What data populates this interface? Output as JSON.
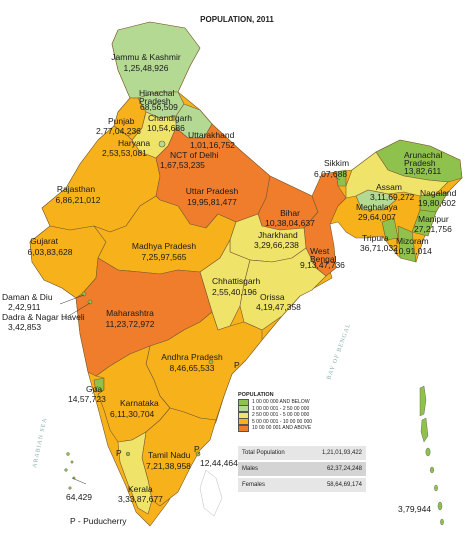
{
  "map": {
    "title": "POPULATION, 2011",
    "footnote": "P - Puducherry",
    "sea_labels": {
      "arabian": "ARABIAN SEA",
      "bay": "BAY OF BENGAL"
    },
    "colors": {
      "low": "#8fc24c",
      "lowmid": "#b3d992",
      "mid": "#f0e36a",
      "high": "#f7b21b",
      "top": "#ef7d2c",
      "jk": "#b3d992"
    },
    "states": {
      "jammu_kashmir": {
        "name": "Jammu & Kashmir",
        "value": "1,25,48,926"
      },
      "himachal": {
        "name": "Himachal\nPradesh",
        "value": "68,56,509"
      },
      "punjab": {
        "name": "Punjab",
        "value": "2,77,04,236"
      },
      "chandigarh": {
        "name": "Chandigarh",
        "value": "10,54,686"
      },
      "uttarakhand": {
        "name": "Uttarakhand",
        "value": "1,01,16,752"
      },
      "haryana": {
        "name": "Haryana",
        "value": "2,53,53,081"
      },
      "delhi": {
        "name": "NCT of Delhi",
        "value": "1,67,53,235"
      },
      "rajasthan": {
        "name": "Rajasthan",
        "value": "6,86,21,012"
      },
      "uttar_pradesh": {
        "name": "Uttar Pradesh",
        "value": "19,95,81,477"
      },
      "bihar": {
        "name": "Bihar",
        "value": "10,38,04,637"
      },
      "sikkim": {
        "name": "Sikkim",
        "value": "6,07,688"
      },
      "arunachal": {
        "name": "Arunachal\nPradesh",
        "value": "13,82,611"
      },
      "assam": {
        "name": "Assam",
        "value": "3,11,69,272"
      },
      "nagaland": {
        "name": "Nagaland",
        "value": "19,80,602"
      },
      "meghalaya": {
        "name": "Meghalaya",
        "value": "29,64,007"
      },
      "manipur": {
        "name": "Manipur",
        "value": "27,21,756"
      },
      "tripura": {
        "name": "Tripura",
        "value": "36,71,032"
      },
      "mizoram": {
        "name": "Mizoram",
        "value": "10,91,014"
      },
      "jharkhand": {
        "name": "Jharkhand",
        "value": "3,29,66,238"
      },
      "west_bengal": {
        "name": "West\nBengal",
        "value": "9,13,47,736"
      },
      "gujarat": {
        "name": "Gujarat",
        "value": "6,03,83,628"
      },
      "madhya_pradesh": {
        "name": "Madhya Pradesh",
        "value": "7,25,97,565"
      },
      "chhattisgarh": {
        "name": "Chhattisgarh",
        "value": "2,55,40,196"
      },
      "orissa": {
        "name": "Orissa",
        "value": "4,19,47,358"
      },
      "daman_diu": {
        "name": "Daman & Diu",
        "value": "2,42,911"
      },
      "dadra": {
        "name": "Dadra & Nagar Haveli",
        "value": "3,42,853"
      },
      "maharashtra": {
        "name": "Maharashtra",
        "value": "11,23,72,972"
      },
      "andhra": {
        "name": "Andhra Pradesh",
        "value": "8,46,65,533"
      },
      "goa": {
        "name": "Goa",
        "value": "14,57,723"
      },
      "karnataka": {
        "name": "Karnataka",
        "value": "6,11,30,704"
      },
      "tamil_nadu": {
        "name": "Tamil Nadu",
        "value": "7,21,38,958"
      },
      "puducherry": {
        "name": "P",
        "value": "12,44,464"
      },
      "kerala": {
        "name": "Kerala",
        "value": "3,33,87,677"
      },
      "lakshadweep": {
        "name": "",
        "value": "64,429"
      },
      "andaman": {
        "name": "",
        "value": "3,79,944"
      }
    },
    "p_markers": [
      "P",
      "P",
      "P"
    ]
  },
  "legend": {
    "title": "POPULATION",
    "items": [
      {
        "label": "1 00 00 000 AND BELOW",
        "color": "#8fc24c"
      },
      {
        "label": "1 00 00 001 - 2 50 00 000",
        "color": "#b3d992"
      },
      {
        "label": "2 50 00 001 - 5 00 00 000",
        "color": "#f0e36a"
      },
      {
        "label": "5 00 00 001 - 10 00 00 000",
        "color": "#f7b21b"
      },
      {
        "label": "10 00 00 001 AND ABOVE",
        "color": "#ef7d2c"
      }
    ]
  },
  "totals": {
    "total": {
      "label": "Total Population",
      "value": "1,21,01,93,422"
    },
    "males": {
      "label": "Males",
      "value": "62,37,24,248"
    },
    "females": {
      "label": "Females",
      "value": "58,64,69,174"
    }
  }
}
